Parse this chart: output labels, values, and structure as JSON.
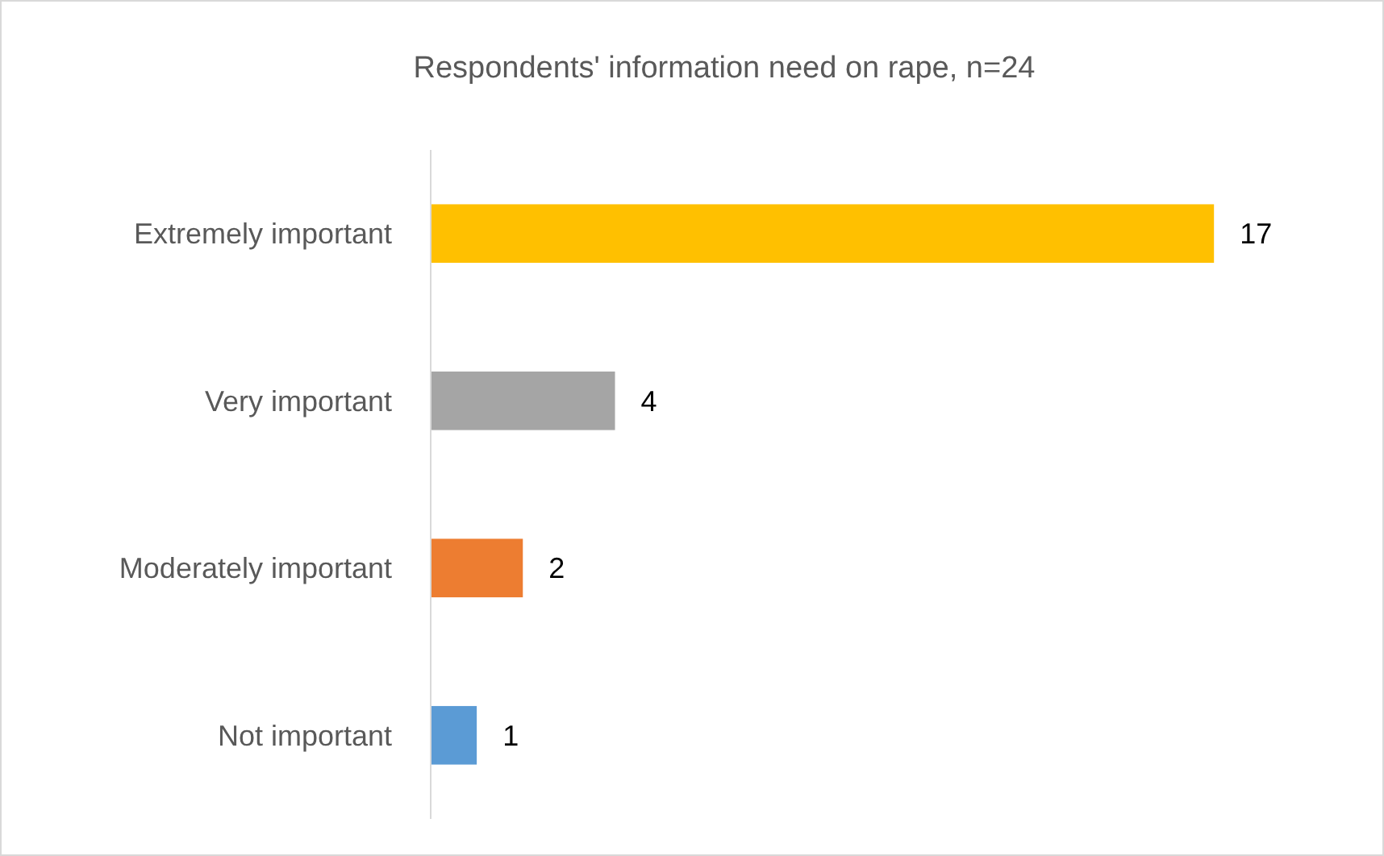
{
  "chart_data": {
    "type": "bar",
    "orientation": "horizontal",
    "title": "Respondents' information need on rape, n=24",
    "categories": [
      "Extremely important",
      "Very important",
      "Moderately important",
      "Not important"
    ],
    "values": [
      17,
      4,
      2,
      1
    ],
    "colors": [
      "#ffc000",
      "#a5a5a5",
      "#ed7d31",
      "#5b9bd5"
    ],
    "data_labels": true
  }
}
